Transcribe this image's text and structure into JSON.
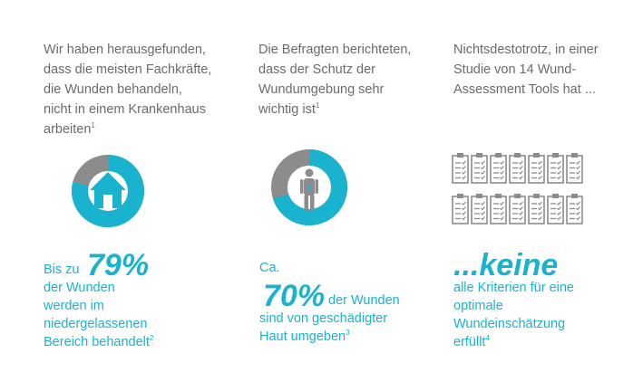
{
  "col1": {
    "intro": [
      "Wir haben herausgefunden,",
      "dass die meisten Fachkräfte,",
      "die Wunden behandeln,",
      "nicht in einem Krankenhaus",
      "arbeiten"
    ],
    "intro_sup": "1",
    "stat_prefix": "Bis zu",
    "stat_value": "79%",
    "stat_percent": 79,
    "lines": [
      "der Wunden",
      "werden im",
      "niedergelassenen",
      "Bereich  behandelt"
    ],
    "lines_sup": "2"
  },
  "col2": {
    "intro": [
      "Die Befragten berichteten,",
      "dass der Schutz der",
      "Wundumgebung sehr",
      "wichtig ist"
    ],
    "intro_sup": "1",
    "stat_prefix": "Ca.",
    "stat_value": "70%",
    "stat_percent": 70,
    "line1_suffix": "der Wunden",
    "lines": [
      "sind von geschädigter",
      "Haut umgeben"
    ],
    "lines_sup": "3"
  },
  "col3": {
    "intro": [
      "Nichtsdestotrotz, in einer",
      "Studie von 14 Wund-",
      "Assessment Tools hat ..."
    ],
    "stat_value": "...keine",
    "tool_count": 14,
    "lines": [
      "alle Kriterien für eine",
      "optimale",
      "Wundeinschätzung",
      "erfüllt"
    ],
    "lines_sup": "4"
  },
  "colors": {
    "accent": "#19b3cf",
    "grey": "#8c8c8c",
    "text": "#6b6b6b"
  },
  "icons": [
    "house-icon",
    "person-icon",
    "clipboard-icon"
  ]
}
